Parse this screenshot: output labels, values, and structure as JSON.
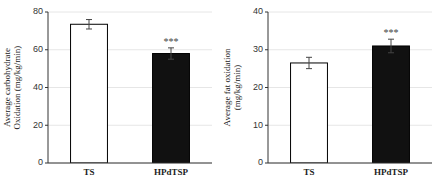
{
  "chart_data": [
    {
      "type": "bar",
      "categories": [
        "TS",
        "HPdTSP"
      ],
      "values": [
        73.5,
        58.0
      ],
      "errors": [
        2.5,
        3.0
      ],
      "colors": [
        "#ffffff",
        "#111111"
      ],
      "ylabel": "Average carbohydrate\nOxidation (mg/kg/min)",
      "ylim": [
        0,
        80
      ],
      "yticks": [
        0,
        20,
        40,
        60,
        80
      ],
      "annotations": [
        {
          "text": "***",
          "category": "HPdTSP"
        }
      ]
    },
    {
      "type": "bar",
      "categories": [
        "TS",
        "HPdTSP"
      ],
      "values": [
        26.5,
        31.0
      ],
      "errors": [
        1.5,
        1.8
      ],
      "colors": [
        "#ffffff",
        "#111111"
      ],
      "ylabel": "Average fat oxidation\n(mg/kg/min)",
      "ylim": [
        0,
        40
      ],
      "yticks": [
        0,
        10,
        20,
        30,
        40
      ],
      "annotations": [
        {
          "text": "***",
          "category": "HPdTSP"
        }
      ]
    }
  ]
}
